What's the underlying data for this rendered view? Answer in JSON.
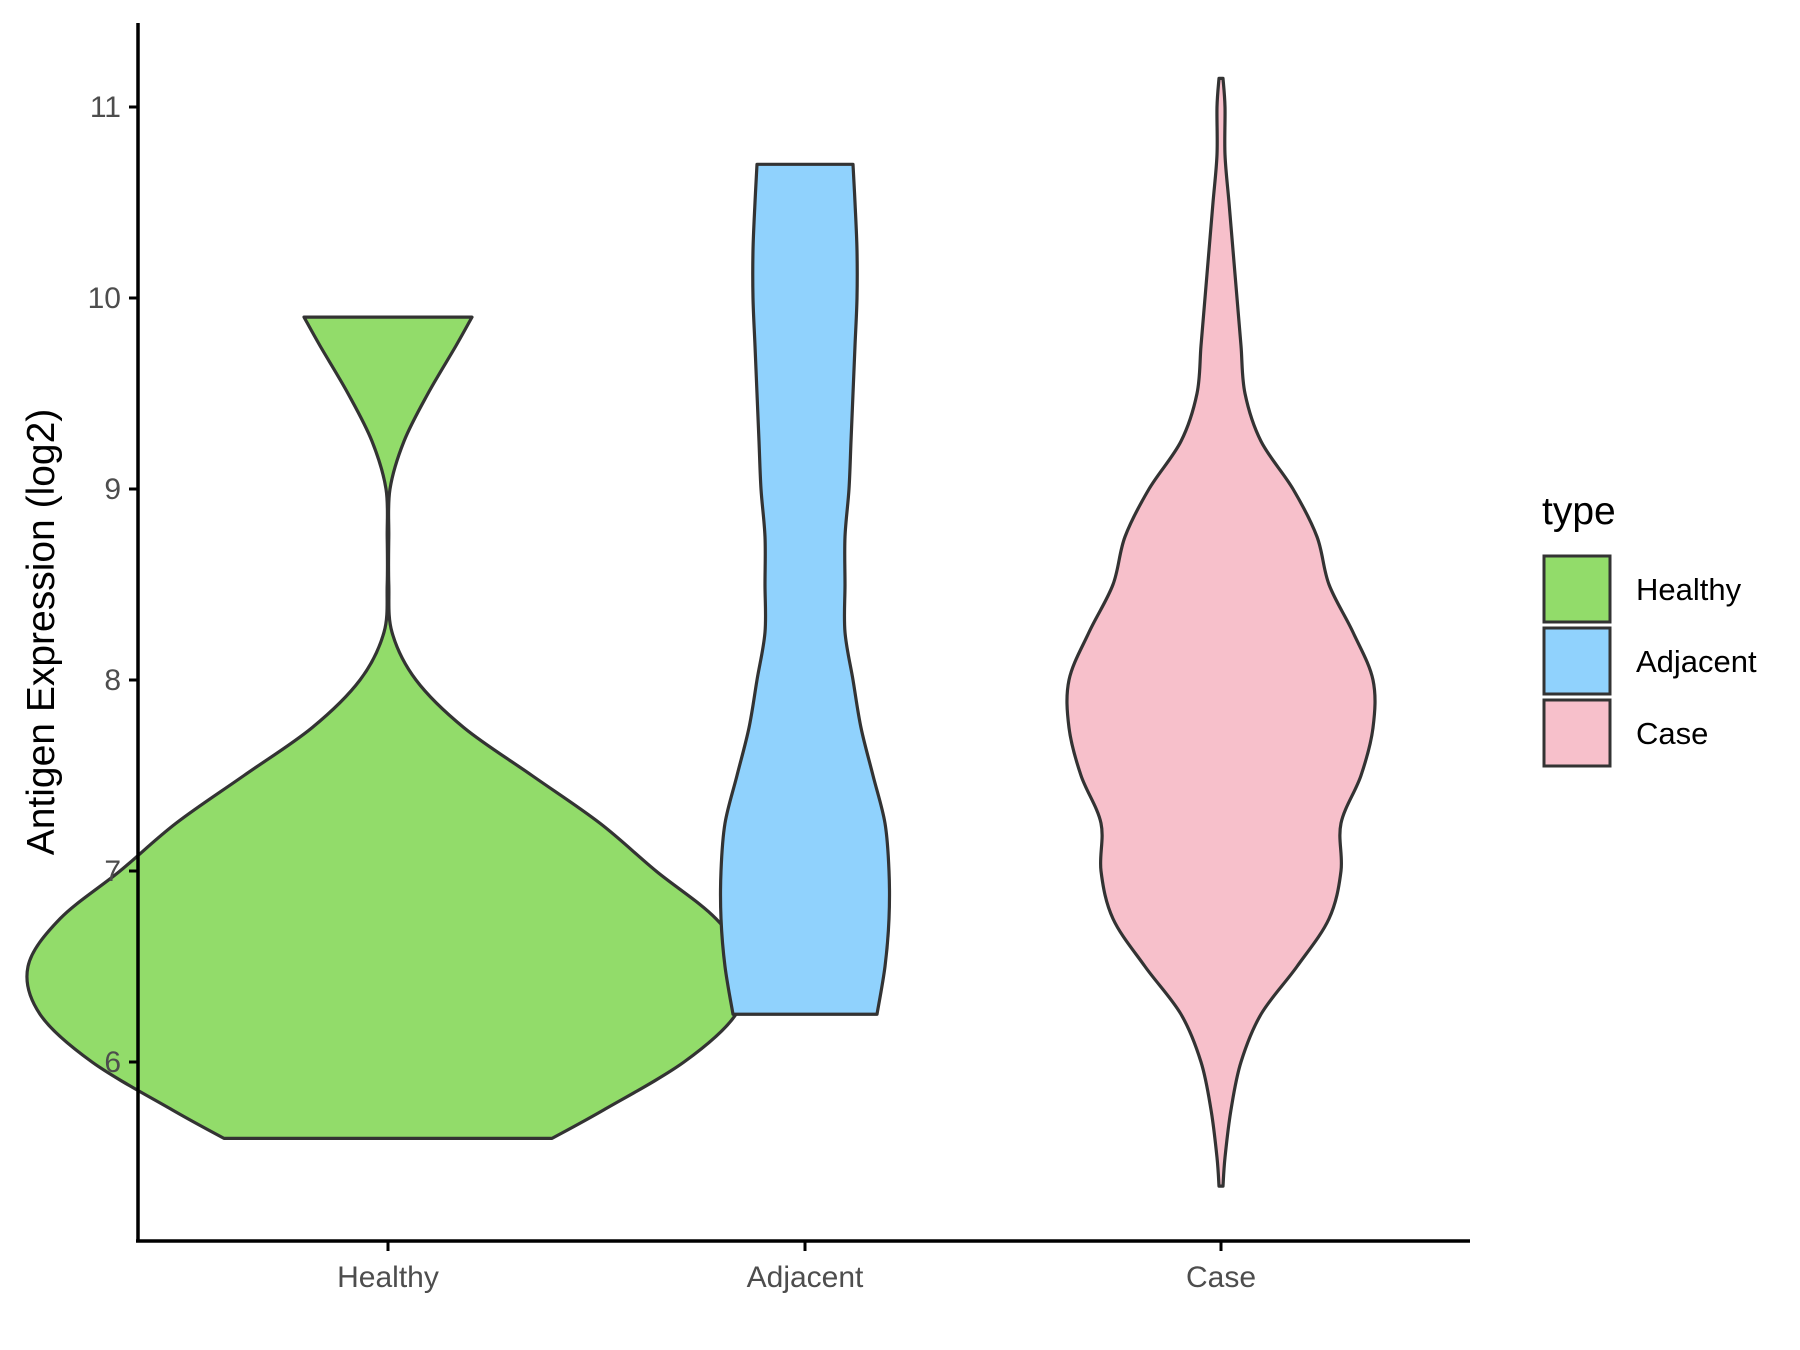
{
  "chart_data": {
    "type": "violin",
    "ylabel": "Antigen Expression (log2)",
    "xlabel": "",
    "categories": [
      "Healthy",
      "Adjacent",
      "Case"
    ],
    "y_ticks": [
      6,
      7,
      8,
      9,
      10,
      11
    ],
    "ylim": [
      5.05,
      11.45
    ],
    "grid": false,
    "legend": {
      "title": "type",
      "position": "right",
      "entries": [
        "Healthy",
        "Adjacent",
        "Case"
      ]
    },
    "colors": {
      "Healthy": "#92dc6a",
      "Adjacent": "#90d2fd",
      "Case": "#f7c0cb",
      "outline": "#333333",
      "axis": "#000000"
    },
    "series": [
      {
        "category": "Healthy",
        "min": 5.6,
        "max": 9.9,
        "density": [
          [
            5.6,
            0.41
          ],
          [
            5.75,
            0.54
          ],
          [
            6.0,
            0.74
          ],
          [
            6.25,
            0.87
          ],
          [
            6.5,
            0.9
          ],
          [
            6.75,
            0.82
          ],
          [
            7.0,
            0.67
          ],
          [
            7.25,
            0.53
          ],
          [
            7.5,
            0.36
          ],
          [
            7.75,
            0.19
          ],
          [
            8.0,
            0.07
          ],
          [
            8.25,
            0.01
          ],
          [
            8.5,
            0.002
          ],
          [
            8.75,
            0.002
          ],
          [
            9.0,
            0.005
          ],
          [
            9.25,
            0.04
          ],
          [
            9.5,
            0.1
          ],
          [
            9.75,
            0.17
          ],
          [
            9.9,
            0.21
          ]
        ]
      },
      {
        "category": "Adjacent",
        "min": 6.25,
        "max": 10.7,
        "density": [
          [
            6.25,
            0.18
          ],
          [
            6.5,
            0.2
          ],
          [
            6.75,
            0.21
          ],
          [
            7.0,
            0.21
          ],
          [
            7.25,
            0.2
          ],
          [
            7.5,
            0.17
          ],
          [
            7.75,
            0.14
          ],
          [
            8.0,
            0.12
          ],
          [
            8.25,
            0.1
          ],
          [
            8.5,
            0.1
          ],
          [
            8.75,
            0.1
          ],
          [
            9.0,
            0.11
          ],
          [
            9.25,
            0.115
          ],
          [
            9.5,
            0.12
          ],
          [
            9.75,
            0.125
          ],
          [
            10.0,
            0.13
          ],
          [
            10.25,
            0.13
          ],
          [
            10.5,
            0.125
          ],
          [
            10.7,
            0.12
          ]
        ]
      },
      {
        "category": "Case",
        "min": 5.35,
        "max": 11.15,
        "density": [
          [
            5.35,
            0.005
          ],
          [
            5.5,
            0.01
          ],
          [
            5.75,
            0.025
          ],
          [
            6.0,
            0.05
          ],
          [
            6.25,
            0.1
          ],
          [
            6.5,
            0.19
          ],
          [
            6.75,
            0.27
          ],
          [
            7.0,
            0.3
          ],
          [
            7.25,
            0.3
          ],
          [
            7.5,
            0.35
          ],
          [
            7.75,
            0.38
          ],
          [
            8.0,
            0.38
          ],
          [
            8.25,
            0.33
          ],
          [
            8.5,
            0.27
          ],
          [
            8.75,
            0.24
          ],
          [
            9.0,
            0.18
          ],
          [
            9.25,
            0.1
          ],
          [
            9.5,
            0.06
          ],
          [
            9.75,
            0.05
          ],
          [
            10.0,
            0.04
          ],
          [
            10.25,
            0.03
          ],
          [
            10.5,
            0.02
          ],
          [
            10.75,
            0.01
          ],
          [
            11.0,
            0.01
          ],
          [
            11.15,
            0.005
          ]
        ]
      }
    ]
  }
}
